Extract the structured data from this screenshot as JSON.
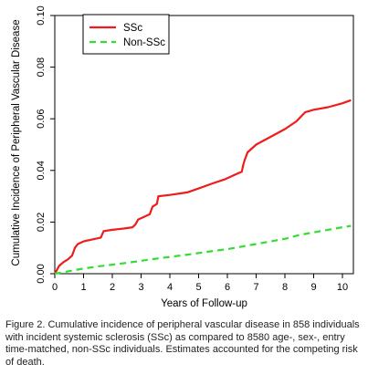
{
  "chart_data": {
    "type": "line",
    "xlabel": "Years of Follow-up",
    "ylabel": "Cumulative Incidence of Peripheral Vascular Disease",
    "xlim": [
      0,
      10.4
    ],
    "ylim": [
      0,
      0.1
    ],
    "x_ticks": [
      0,
      1,
      2,
      3,
      4,
      5,
      6,
      7,
      8,
      9,
      10
    ],
    "y_ticks": [
      "0.00",
      "0.02",
      "0.04",
      "0.06",
      "0.08",
      "0.10"
    ],
    "y_tick_values": [
      0,
      0.02,
      0.04,
      0.06,
      0.08,
      0.1
    ],
    "grid": false,
    "legend_position": "top-left",
    "series": [
      {
        "name": "SSc",
        "color": "#ee1c1c",
        "style": "solid",
        "x": [
          0,
          0.05,
          0.15,
          0.3,
          0.45,
          0.6,
          0.7,
          0.8,
          1.0,
          1.2,
          1.4,
          1.6,
          1.7,
          2.0,
          2.4,
          2.7,
          2.8,
          2.9,
          3.1,
          3.3,
          3.4,
          3.55,
          3.6,
          4.0,
          4.6,
          5.0,
          5.5,
          5.9,
          6.3,
          6.5,
          6.55,
          6.6,
          6.7,
          7.0,
          7.5,
          8.0,
          8.4,
          8.7,
          9.0,
          9.5,
          10.0,
          10.3
        ],
        "y": [
          0,
          0.001,
          0.003,
          0.0045,
          0.0055,
          0.007,
          0.01,
          0.0115,
          0.0125,
          0.013,
          0.0135,
          0.014,
          0.0165,
          0.017,
          0.0175,
          0.018,
          0.019,
          0.021,
          0.022,
          0.023,
          0.026,
          0.027,
          0.03,
          0.0305,
          0.0315,
          0.033,
          0.035,
          0.0365,
          0.0385,
          0.0395,
          0.042,
          0.044,
          0.047,
          0.05,
          0.053,
          0.056,
          0.059,
          0.0625,
          0.0635,
          0.0645,
          0.066,
          0.0672
        ]
      },
      {
        "name": "Non-SSc",
        "color": "#33dd33",
        "style": "dashed",
        "x": [
          0,
          0.5,
          1.0,
          1.5,
          2.0,
          2.5,
          3.0,
          3.5,
          4.0,
          4.5,
          5.0,
          5.5,
          6.0,
          6.5,
          7.0,
          7.5,
          8.0,
          8.5,
          9.0,
          9.5,
          10.0,
          10.3
        ],
        "y": [
          0,
          0.001,
          0.002,
          0.0028,
          0.0035,
          0.0042,
          0.005,
          0.0058,
          0.0065,
          0.0072,
          0.008,
          0.0088,
          0.0095,
          0.0105,
          0.0115,
          0.0125,
          0.0135,
          0.015,
          0.016,
          0.017,
          0.018,
          0.0185
        ]
      }
    ]
  },
  "caption": "Figure 2. Cumulative incidence of peripheral vascular disease in 858 individuals with incident systemic sclerosis (SSc) as compared to 8580 age-, sex-, entry time-matched, non-SSc individuals.  Estimates accounted for the competing risk of death."
}
